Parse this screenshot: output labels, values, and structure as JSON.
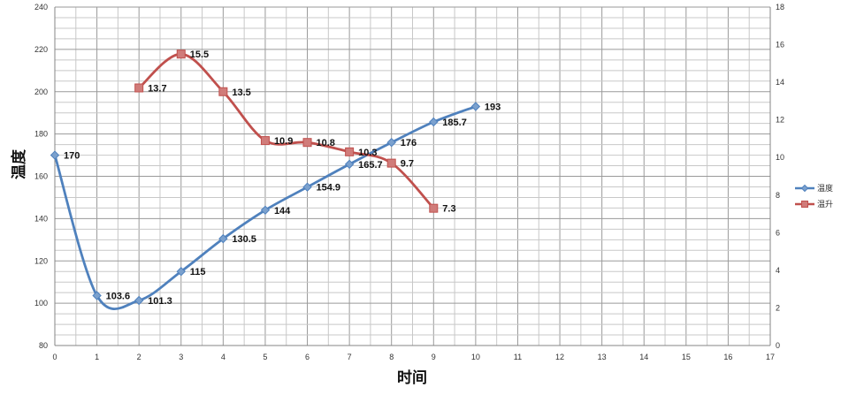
{
  "chart_data": {
    "type": "line",
    "xlabel": "时间",
    "ylabel": "温度",
    "xlim": [
      0,
      17
    ],
    "ylim": [
      80,
      240
    ],
    "y2lim": [
      0,
      18
    ],
    "x_ticks": [
      0,
      1,
      2,
      3,
      4,
      5,
      6,
      7,
      8,
      9,
      10,
      11,
      12,
      13,
      14,
      15,
      16,
      17
    ],
    "y_ticks": [
      80,
      100,
      120,
      140,
      160,
      180,
      200,
      220,
      240
    ],
    "y2_ticks": [
      0,
      2,
      4,
      6,
      8,
      10,
      12,
      14,
      16,
      18
    ],
    "grid": true,
    "legend_position": "right",
    "series": [
      {
        "name": "温度",
        "axis": "left",
        "color": "#4F81BD",
        "marker": "diamond",
        "smooth": true,
        "x": [
          0,
          1,
          2,
          3,
          4,
          5,
          6,
          7,
          8,
          9,
          10
        ],
        "y": [
          170,
          103.6,
          101.3,
          115,
          130.5,
          144,
          154.9,
          165.7,
          176,
          185.7,
          193
        ],
        "labels": [
          "170",
          "103.6",
          "101.3",
          "115",
          "130.5",
          "144",
          "154.9",
          "165.7",
          "176",
          "185.7",
          "193"
        ]
      },
      {
        "name": "温升",
        "axis": "right",
        "color": "#C0504D",
        "marker": "square",
        "smooth": true,
        "x": [
          2,
          3,
          4,
          5,
          6,
          7,
          8,
          9
        ],
        "y": [
          13.7,
          15.5,
          13.5,
          10.9,
          10.8,
          10.3,
          9.7,
          7.3
        ],
        "labels": [
          "13.7",
          "15.5",
          "13.5",
          "10.9",
          "10.8",
          "10.3",
          "9.7",
          "7.3"
        ]
      }
    ]
  }
}
